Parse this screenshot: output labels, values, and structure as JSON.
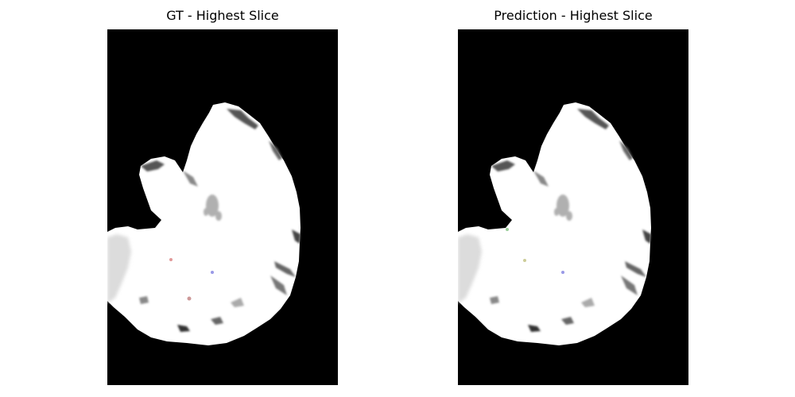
{
  "panels": [
    {
      "title": "GT - Highest Slice",
      "image_kind": "ground-truth brain MRI slice with segmentation overlay",
      "overlay_colors": [
        "#d98080",
        "#8080e0",
        "#c08080"
      ]
    },
    {
      "title": "Prediction - Highest Slice",
      "image_kind": "predicted brain MRI slice with segmentation overlay",
      "overlay_colors": [
        "#80c080",
        "#c0c080",
        "#8080e0"
      ]
    }
  ],
  "colors": {
    "background": "#000000",
    "tissue": "#ffffff",
    "text": "#000000"
  }
}
